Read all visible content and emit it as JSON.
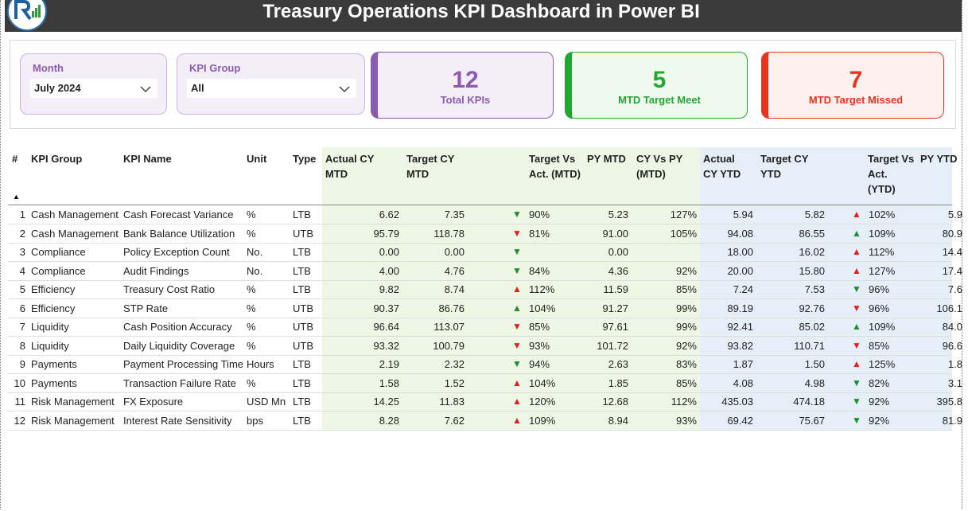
{
  "header": {
    "title": "Treasury Operations KPI Dashboard in Power BI"
  },
  "slicers": [
    {
      "label": "Month",
      "value": "July 2024"
    },
    {
      "label": "KPI Group",
      "value": "All"
    }
  ],
  "cards": [
    {
      "value": "12",
      "label": "Total KPIs",
      "color": "#8b5bb0",
      "bg": "#f3eef8"
    },
    {
      "value": "5",
      "label": "MTD Target Meet",
      "color": "#22a832",
      "bg": "#effaef"
    },
    {
      "value": "7",
      "label": "MTD Target Missed",
      "color": "#e8341c",
      "bg": "#fdf1ef"
    }
  ],
  "table": {
    "status_colors": {
      "met": "#1e8c32",
      "missed": "#e0201b"
    },
    "columns": [
      "#",
      "KPI Group",
      "KPI Name",
      "Unit",
      "Type",
      "Actual CY MTD",
      "Target CY MTD",
      "Target Vs Act. (MTD)",
      "PY MTD",
      "CY Vs PY (MTD)",
      "Actual CY YTD",
      "Target CY YTD",
      "Target Vs Act. (YTD)",
      "PY YTD"
    ],
    "rows": [
      {
        "cells": [
          "1",
          "Cash Management",
          "Cash Forecast Variance",
          "%",
          "LTB",
          "6.62",
          "7.35",
          "90%",
          "5.23",
          "127%",
          "5.94",
          "5.82",
          "102%",
          "5.9"
        ],
        "mtd_icon": "▼",
        "mtd_status": "met",
        "ytd_icon": "▲",
        "ytd_status": "missed"
      },
      {
        "cells": [
          "2",
          "Cash Management",
          "Bank Balance Utilization",
          "%",
          "UTB",
          "95.79",
          "118.78",
          "81%",
          "91.00",
          "105%",
          "94.08",
          "86.55",
          "109%",
          "80.9"
        ],
        "mtd_icon": "▼",
        "mtd_status": "missed",
        "ytd_icon": "▲",
        "ytd_status": "met"
      },
      {
        "cells": [
          "3",
          "Compliance",
          "Policy Exception Count",
          "No.",
          "LTB",
          "0.00",
          "0.00",
          null,
          "0.00",
          null,
          "18.00",
          "16.02",
          "112%",
          "14.4"
        ],
        "mtd_icon": "▼",
        "mtd_status": "met",
        "ytd_icon": "▲",
        "ytd_status": "missed"
      },
      {
        "cells": [
          "4",
          "Compliance",
          "Audit Findings",
          "No.",
          "LTB",
          "4.00",
          "4.76",
          "84%",
          "4.36",
          "92%",
          "20.00",
          "15.80",
          "127%",
          "17.4"
        ],
        "mtd_icon": "▼",
        "mtd_status": "met",
        "ytd_icon": "▲",
        "ytd_status": "missed"
      },
      {
        "cells": [
          "5",
          "Efficiency",
          "Treasury Cost Ratio",
          "%",
          "LTB",
          "9.82",
          "8.74",
          "112%",
          "11.59",
          "85%",
          "7.24",
          "7.53",
          "96%",
          "7.6"
        ],
        "mtd_icon": "▲",
        "mtd_status": "missed",
        "ytd_icon": "▼",
        "ytd_status": "met"
      },
      {
        "cells": [
          "6",
          "Efficiency",
          "STP Rate",
          "%",
          "UTB",
          "90.37",
          "86.76",
          "104%",
          "91.27",
          "99%",
          "89.19",
          "92.76",
          "96%",
          "106.1"
        ],
        "mtd_icon": "▲",
        "mtd_status": "met",
        "ytd_icon": "▼",
        "ytd_status": "missed"
      },
      {
        "cells": [
          "7",
          "Liquidity",
          "Cash Position Accuracy",
          "%",
          "UTB",
          "96.64",
          "113.07",
          "85%",
          "97.61",
          "99%",
          "92.41",
          "85.02",
          "109%",
          "84.0"
        ],
        "mtd_icon": "▼",
        "mtd_status": "missed",
        "ytd_icon": "▲",
        "ytd_status": "met"
      },
      {
        "cells": [
          "8",
          "Liquidity",
          "Daily Liquidity Coverage",
          "%",
          "UTB",
          "93.32",
          "100.79",
          "93%",
          "101.72",
          "92%",
          "93.82",
          "110.71",
          "85%",
          "96.6"
        ],
        "mtd_icon": "▼",
        "mtd_status": "missed",
        "ytd_icon": "▼",
        "ytd_status": "missed"
      },
      {
        "cells": [
          "9",
          "Payments",
          "Payment Processing Time",
          "Hours",
          "LTB",
          "2.19",
          "2.32",
          "94%",
          "2.63",
          "83%",
          "1.87",
          "1.50",
          "125%",
          "1.8"
        ],
        "mtd_icon": "▼",
        "mtd_status": "met",
        "ytd_icon": "▲",
        "ytd_status": "missed"
      },
      {
        "cells": [
          "10",
          "Payments",
          "Transaction Failure Rate",
          "%",
          "LTB",
          "1.58",
          "1.52",
          "104%",
          "1.85",
          "85%",
          "4.08",
          "4.98",
          "82%",
          "3.1"
        ],
        "mtd_icon": "▲",
        "mtd_status": "missed",
        "ytd_icon": "▼",
        "ytd_status": "met"
      },
      {
        "cells": [
          "11",
          "Risk Management",
          "FX Exposure",
          "USD Mn",
          "LTB",
          "14.25",
          "11.83",
          "120%",
          "12.68",
          "112%",
          "435.03",
          "474.18",
          "92%",
          "395.8"
        ],
        "mtd_icon": "▲",
        "mtd_status": "missed",
        "ytd_icon": "▼",
        "ytd_status": "met"
      },
      {
        "cells": [
          "12",
          "Risk Management",
          "Interest Rate Sensitivity",
          "bps",
          "LTB",
          "8.28",
          "7.62",
          "109%",
          "8.94",
          "93%",
          "69.42",
          "75.67",
          "92%",
          "81.9"
        ],
        "mtd_icon": "▲",
        "mtd_status": "missed",
        "ytd_icon": "▼",
        "ytd_status": "met"
      }
    ]
  }
}
